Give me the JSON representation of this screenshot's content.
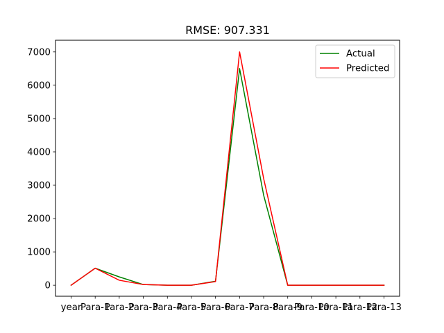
{
  "chart_data": {
    "type": "line",
    "title": "RMSE: 907.331",
    "xlabel": "",
    "ylabel": "",
    "categories": [
      "year",
      "Para-1",
      "Para-2",
      "Para-3",
      "Para-4",
      "Para-5",
      "Para-6",
      "Para-7",
      "Para-8",
      "Para-9",
      "Para-10",
      "Para-11",
      "Para-12",
      "Para-13"
    ],
    "ylim": [
      -330,
      7350
    ],
    "yticks": [
      0,
      1000,
      2000,
      3000,
      4000,
      5000,
      6000,
      7000
    ],
    "ytick_labels": [
      "0",
      "1000",
      "2000",
      "3000",
      "4000",
      "5000",
      "6000",
      "7000"
    ],
    "grid": false,
    "legend_position": "top-right",
    "series": [
      {
        "name": "Actual",
        "color": "#008000",
        "values": [
          0,
          510,
          250,
          20,
          0,
          0,
          120,
          6500,
          2700,
          0,
          0,
          0,
          0,
          0
        ]
      },
      {
        "name": "Predicted",
        "color": "#ff0000",
        "values": [
          0,
          510,
          150,
          20,
          0,
          0,
          110,
          7000,
          3200,
          0,
          0,
          0,
          0,
          0
        ]
      }
    ]
  }
}
